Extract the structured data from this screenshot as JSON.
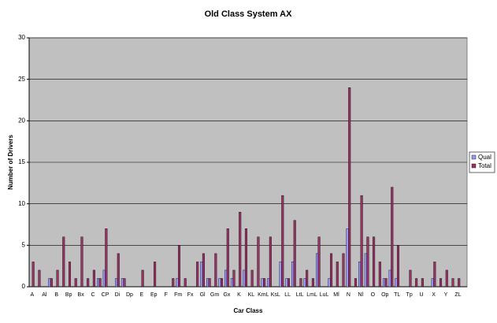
{
  "chart_data": {
    "type": "bar",
    "title": "Old Class System AX",
    "x_label": "Car Class",
    "y_label": "Number of Drivers",
    "categories": [
      "A",
      null,
      "Al",
      null,
      "B",
      null,
      "Bp",
      null,
      "Bx",
      null,
      "C",
      null,
      "CP",
      null,
      "Di",
      null,
      "Dp",
      null,
      "E",
      null,
      "Ep",
      null,
      "F",
      null,
      "Fm",
      null,
      "Fx",
      null,
      "Gl",
      null,
      "Gm",
      null,
      "Gx",
      null,
      "K",
      null,
      "KL",
      null,
      "KmL",
      null,
      "KsL",
      null,
      "LL",
      null,
      "LtL",
      null,
      "LmL",
      null,
      "LuL",
      null,
      "Ml",
      null,
      "N",
      null,
      "Nl",
      null,
      "O",
      null,
      "Op",
      null,
      "TL",
      null,
      "Tp",
      null,
      "U",
      null,
      "X",
      null,
      "Y",
      null,
      "ZL",
      null
    ],
    "series": [
      {
        "name": "Qual",
        "color": "#9999ff",
        "values": [
          0,
          0,
          0,
          1,
          0,
          0,
          0,
          0,
          0,
          0,
          0,
          1,
          2,
          0,
          1,
          1,
          0,
          0,
          0,
          0,
          0,
          0,
          0,
          0,
          1,
          0,
          0,
          0,
          3,
          1,
          0,
          1,
          2,
          1,
          0,
          2,
          0,
          0,
          1,
          1,
          0,
          3,
          1,
          3,
          0,
          1,
          0,
          4,
          0,
          1,
          0,
          0,
          7,
          0,
          3,
          4,
          0,
          0,
          1,
          2,
          1,
          0,
          0,
          0,
          0,
          0,
          1,
          0,
          0,
          0,
          0,
          0
        ]
      },
      {
        "name": "Total",
        "color": "#993366",
        "values": [
          3,
          2,
          0,
          1,
          2,
          6,
          3,
          1,
          6,
          1,
          2,
          1,
          7,
          0,
          4,
          1,
          0,
          0,
          2,
          0,
          3,
          0,
          0,
          1,
          5,
          1,
          0,
          3,
          4,
          1,
          4,
          1,
          7,
          2,
          9,
          7,
          2,
          6,
          1,
          6,
          0,
          11,
          1,
          8,
          1,
          2,
          1,
          6,
          0,
          4,
          3,
          4,
          24,
          1,
          11,
          6,
          6,
          3,
          1,
          12,
          5,
          0,
          2,
          1,
          1,
          0,
          3,
          1,
          2,
          1,
          1,
          0
        ]
      }
    ],
    "ylim": [
      0,
      30
    ],
    "yticks": [
      0,
      5,
      10,
      15,
      20,
      25,
      30
    ],
    "grid": true,
    "legend": "right"
  }
}
